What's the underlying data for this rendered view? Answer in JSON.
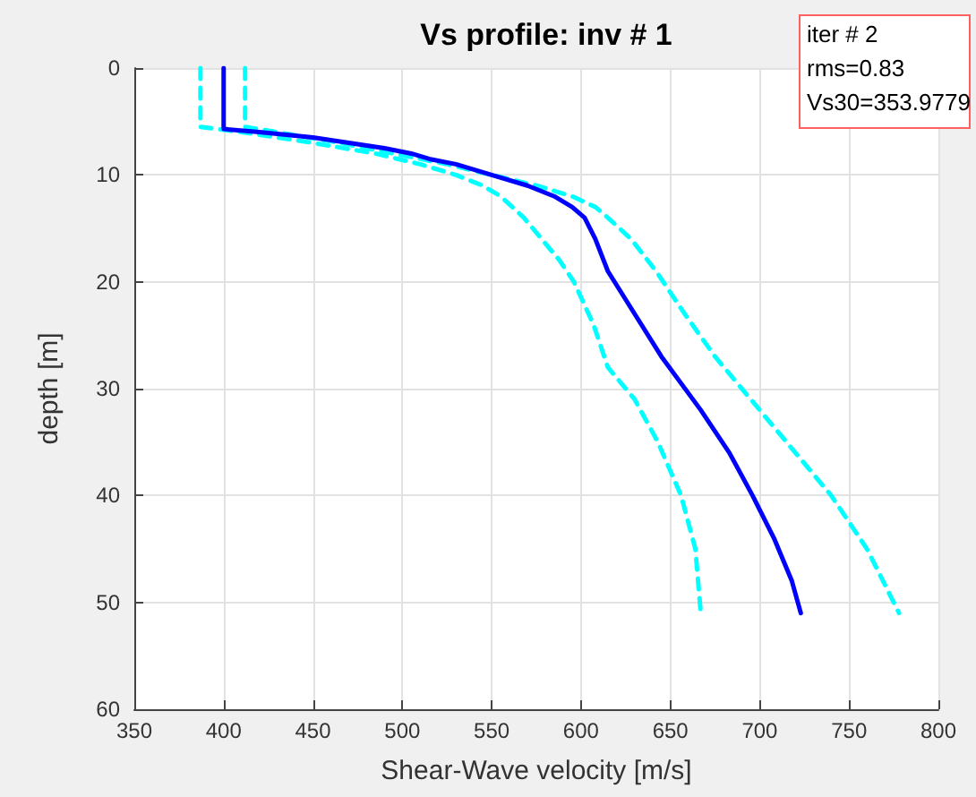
{
  "chart_data": {
    "type": "line",
    "title": "Vs profile: inv # 1",
    "xlabel": "Shear-Wave velocity [m/s]",
    "ylabel": "depth [m]",
    "xlim": [
      350,
      800
    ],
    "xticks": [
      350,
      400,
      450,
      500,
      550,
      600,
      650,
      700,
      750,
      800
    ],
    "ylim": [
      60,
      0
    ],
    "yticks": [
      0,
      10,
      20,
      30,
      40,
      50,
      60
    ],
    "grid": true,
    "marker": "none",
    "annotations": [
      "iter # 2",
      "rms=0.83",
      "Vs30=353.9779"
    ],
    "series": [
      {
        "color": "#00ffff",
        "line_style": "dashed",
        "x": [
          387,
          387,
          410,
          450,
          485,
          510,
          530,
          545,
          555,
          568,
          578,
          588,
          596,
          607,
          615,
          630,
          643,
          656,
          664,
          667
        ],
        "values": [
          0,
          5.5,
          6,
          7,
          8,
          9,
          10,
          11,
          12,
          14,
          16,
          18,
          20,
          24,
          28,
          31,
          35,
          40,
          45,
          51
        ]
      },
      {
        "color": "#00ffff",
        "line_style": "dashed",
        "x": [
          412,
          412,
          430,
          465,
          495,
          525,
          550,
          575,
          595,
          608,
          615,
          628,
          642,
          658,
          675,
          695,
          715,
          740,
          760,
          778
        ],
        "values": [
          0,
          5.5,
          6,
          7,
          8,
          9,
          10,
          11,
          12,
          13,
          14,
          16,
          19,
          23,
          27,
          31,
          35,
          40,
          45,
          51
        ]
      },
      {
        "color": "#0000ff",
        "line_style": "solid",
        "x": [
          400,
          400,
          420,
          450,
          470,
          490,
          505,
          515,
          530,
          540,
          550,
          570,
          585,
          595,
          602,
          608,
          615,
          630,
          645,
          667,
          683,
          696,
          708,
          718,
          723
        ],
        "values": [
          0,
          5.7,
          6,
          6.5,
          7,
          7.5,
          8,
          8.5,
          9,
          9.5,
          10,
          11,
          12,
          13,
          14,
          16,
          19,
          23,
          27,
          32,
          36,
          40,
          44,
          48,
          51
        ]
      }
    ]
  }
}
